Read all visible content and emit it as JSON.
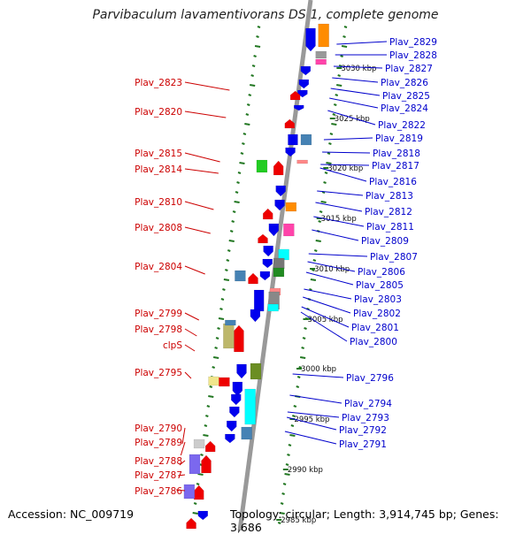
{
  "title": "Parvibaculum lavamentivorans DS-1, complete genome",
  "accession_text": "Accession: NC_009719",
  "topology_text": "Topology: circular; Length: 3,914,745 bp; Genes: 3,686",
  "colors": {
    "forward_arrow": "#ee0000",
    "reverse_arrow": "#0000ee",
    "left_label": "#cc0000",
    "right_label": "#0000cc",
    "ruler_tick": "#227722",
    "backbone": "#999999"
  },
  "kbp_marks": [
    "3030 kbp",
    "3025 kbp",
    "3020 kbp",
    "3015 kbp",
    "3010 kbp",
    "3005 kbp",
    "3000 kbp",
    "2995 kbp",
    "2990 kbp",
    "2985 kbp"
  ],
  "left_labels": [
    "Plav_2823",
    "Plav_2820",
    "Plav_2815",
    "Plav_2814",
    "Plav_2810",
    "Plav_2808",
    "Plav_2804",
    "Plav_2799",
    "Plav_2798",
    "clpS",
    "Plav_2795",
    "Plav_2790",
    "Plav_2789",
    "Plav_2788",
    "Plav_2787",
    "Plav_2786"
  ],
  "right_labels": [
    "Plav_2829",
    "Plav_2828",
    "Plav_2827",
    "Plav_2826",
    "Plav_2825",
    "Plav_2824",
    "Plav_2822",
    "Plav_2819",
    "Plav_2818",
    "Plav_2817",
    "Plav_2816",
    "Plav_2813",
    "Plav_2812",
    "Plav_2811",
    "Plav_2809",
    "Plav_2807",
    "Plav_2806",
    "Plav_2805",
    "Plav_2803",
    "Plav_2802",
    "Plav_2801",
    "Plav_2800",
    "Plav_2796",
    "Plav_2794",
    "Plav_2793",
    "Plav_2792",
    "Plav_2791"
  ]
}
